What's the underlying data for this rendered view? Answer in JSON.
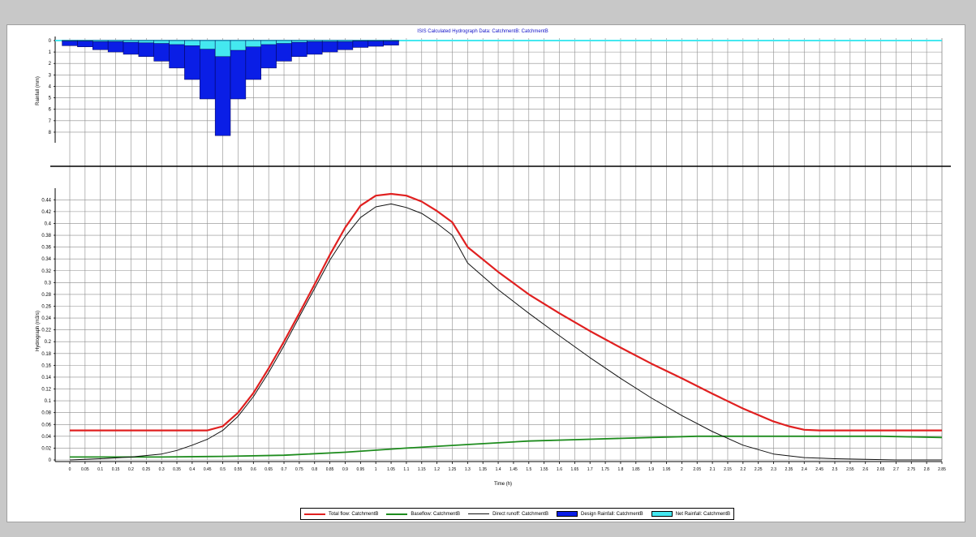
{
  "colors": {
    "total_flow": "#e02020",
    "baseflow": "#1e8c1e",
    "direct_runoff": "#111111",
    "design_rainfall": "#0a1ee6",
    "net_rainfall": "#44e8f0",
    "grid": "#8c8c8c"
  },
  "chart_data": [
    {
      "type": "bar",
      "title": "ISIS Calculated Hydrograph Data: CatchmentB: CatchmentB",
      "ylabel": "Rainfall (mm)",
      "y_inverted": true,
      "ylim": [
        0,
        8.5
      ],
      "yticks": [
        "0",
        "1",
        "2",
        "3",
        "4",
        "5",
        "6",
        "7",
        "8"
      ],
      "bar_width_h": 0.05,
      "x": [
        0,
        0.05,
        0.1,
        0.15,
        0.2,
        0.25,
        0.3,
        0.35,
        0.4,
        0.45,
        0.5,
        0.55,
        0.6,
        0.65,
        0.7,
        0.75,
        0.8,
        0.85,
        0.9,
        0.95,
        1.0,
        1.05
      ],
      "series": [
        {
          "name": "Design Rainfall: CatchmentB",
          "values": [
            0.45,
            0.55,
            0.8,
            1.0,
            1.2,
            1.4,
            1.8,
            2.4,
            3.4,
            5.1,
            8.3,
            5.1,
            3.4,
            2.4,
            1.8,
            1.4,
            1.2,
            1.0,
            0.8,
            0.6,
            0.5,
            0.4
          ]
        },
        {
          "name": "Net Rainfall: CatchmentB",
          "values": [
            0.05,
            0.05,
            0.1,
            0.1,
            0.15,
            0.2,
            0.25,
            0.35,
            0.45,
            0.75,
            1.4,
            0.85,
            0.55,
            0.35,
            0.25,
            0.15,
            0.1,
            0.1,
            0.1,
            0.05,
            0.05,
            0.05
          ]
        }
      ]
    },
    {
      "type": "line",
      "ylabel": "Hydrograph (m3/s)",
      "xlabel": "Time (h)",
      "xlim": [
        0,
        2.85
      ],
      "ylim": [
        0,
        0.45
      ],
      "grid": true,
      "legend": "bottom",
      "xticks": [
        "0",
        "0.05",
        "0.1",
        "0.15",
        "0.2",
        "0.25",
        "0.3",
        "0.35",
        "0.4",
        "0.45",
        "0.5",
        "0.55",
        "0.6",
        "0.65",
        "0.7",
        "0.75",
        "0.8",
        "0.85",
        "0.9",
        "0.95",
        "1",
        "1.05",
        "1.1",
        "1.15",
        "1.2",
        "1.25",
        "1.3",
        "1.35",
        "1.4",
        "1.45",
        "1.5",
        "1.55",
        "1.6",
        "1.65",
        "1.7",
        "1.75",
        "1.8",
        "1.85",
        "1.9",
        "1.95",
        "2",
        "2.05",
        "2.1",
        "2.15",
        "2.2",
        "2.25",
        "2.3",
        "2.35",
        "2.4",
        "2.45",
        "2.5",
        "2.55",
        "2.6",
        "2.65",
        "2.7",
        "2.75",
        "2.8",
        "2.85"
      ],
      "yticks": [
        "0",
        "0.02",
        "0.04",
        "0.06",
        "0.08",
        "0.1",
        "0.12",
        "0.14",
        "0.16",
        "0.18",
        "0.2",
        "0.22",
        "0.24",
        "0.26",
        "0.28",
        "0.3",
        "0.32",
        "0.34",
        "0.36",
        "0.38",
        "0.4",
        "0.42",
        "0.44"
      ],
      "series": [
        {
          "name": "Total flow: CatchmentB",
          "x": [
            0,
            0.45,
            0.5,
            0.55,
            0.6,
            0.65,
            0.7,
            0.75,
            0.8,
            0.85,
            0.9,
            0.95,
            1.0,
            1.05,
            1.1,
            1.15,
            1.2,
            1.25,
            1.3,
            1.4,
            1.5,
            1.6,
            1.7,
            1.8,
            1.9,
            2.0,
            2.1,
            2.2,
            2.3,
            2.35,
            2.4,
            2.45,
            2.85
          ],
          "values": [
            0.05,
            0.05,
            0.057,
            0.08,
            0.113,
            0.155,
            0.2,
            0.248,
            0.297,
            0.347,
            0.393,
            0.43,
            0.447,
            0.45,
            0.447,
            0.437,
            0.421,
            0.402,
            0.36,
            0.318,
            0.28,
            0.248,
            0.218,
            0.19,
            0.163,
            0.138,
            0.112,
            0.087,
            0.065,
            0.057,
            0.051,
            0.05,
            0.05
          ]
        },
        {
          "name": "Baseflow: CatchmentB",
          "x": [
            0,
            0.3,
            0.5,
            0.7,
            0.9,
            1.1,
            1.3,
            1.5,
            1.7,
            1.9,
            2.05,
            2.5,
            2.65,
            2.85
          ],
          "values": [
            0.005,
            0.005,
            0.006,
            0.008,
            0.013,
            0.02,
            0.026,
            0.032,
            0.035,
            0.038,
            0.04,
            0.04,
            0.04,
            0.038
          ]
        },
        {
          "name": "Direct runoff: CatchmentB",
          "x": [
            0,
            0.1,
            0.2,
            0.3,
            0.35,
            0.4,
            0.45,
            0.5,
            0.55,
            0.6,
            0.65,
            0.7,
            0.75,
            0.8,
            0.85,
            0.9,
            0.95,
            1.0,
            1.05,
            1.1,
            1.15,
            1.2,
            1.25,
            1.3,
            1.4,
            1.5,
            1.6,
            1.7,
            1.8,
            1.9,
            2.0,
            2.1,
            2.2,
            2.3,
            2.4,
            2.5,
            2.6,
            2.7,
            2.85
          ],
          "values": [
            0.0,
            0.002,
            0.005,
            0.01,
            0.016,
            0.025,
            0.035,
            0.05,
            0.074,
            0.107,
            0.148,
            0.193,
            0.242,
            0.29,
            0.338,
            0.378,
            0.41,
            0.428,
            0.433,
            0.427,
            0.417,
            0.4,
            0.38,
            0.333,
            0.288,
            0.248,
            0.21,
            0.173,
            0.138,
            0.105,
            0.075,
            0.048,
            0.025,
            0.01,
            0.004,
            0.002,
            0.001,
            0.0,
            0.0
          ]
        }
      ]
    }
  ]
}
